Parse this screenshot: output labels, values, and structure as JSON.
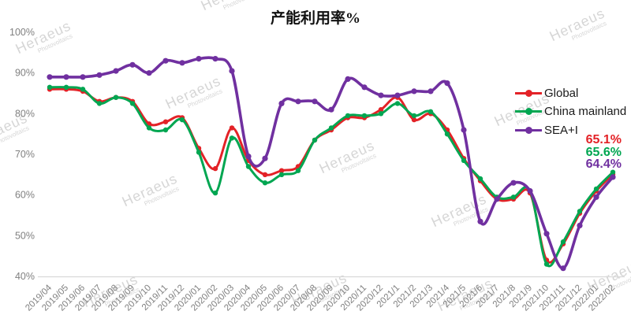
{
  "title": "产能利用率%",
  "watermark": {
    "line1": "Heraeus",
    "line2": "Photovoltaics"
  },
  "colors": {
    "background": "#ffffff",
    "title_text": "#111111",
    "axis_text": "#808080",
    "axis_line": "#d9d9d9",
    "legend_text": "#1a1a1a",
    "watermark": "#cccccc",
    "global_red": "#e32227",
    "china_green": "#00a651",
    "sea_purple": "#7030a0"
  },
  "legend": {
    "items": [
      {
        "label": "Global",
        "value_label": "65.1%",
        "color": "#e32227"
      },
      {
        "label": "China mainland",
        "value_label": "65.6%",
        "color": "#00a651"
      },
      {
        "label": "SEA+I",
        "value_label": "64.4%",
        "color": "#7030a0"
      }
    ]
  },
  "chart_data": {
    "type": "line",
    "title": "产能利用率%",
    "categories": [
      "2019/04",
      "2019/05",
      "2019/06",
      "2019/07",
      "2019/08",
      "2019/09",
      "2019/10",
      "2019/11",
      "2019/12",
      "2020/01",
      "2020/02",
      "2020/03",
      "2020/04",
      "2020/05",
      "2020/06",
      "2020/07",
      "2020/08",
      "2020/09",
      "2020/10",
      "2020/11",
      "2020/12",
      "2021/1",
      "2021/2",
      "2021/3",
      "2021/4",
      "2021/5",
      "2021/6",
      "2021/7",
      "2021/8",
      "2021/9",
      "2021/10",
      "2021/11",
      "2021/12",
      "2022/01",
      "2022/02"
    ],
    "series": [
      {
        "name": "Global",
        "color": "#e32227",
        "values": [
          86,
          86,
          85.5,
          83,
          84,
          83,
          77.5,
          78,
          79,
          71.5,
          66.5,
          76.5,
          68.5,
          65,
          66,
          67,
          73.5,
          76,
          79,
          79,
          81,
          84,
          78.5,
          80,
          76,
          69,
          63.5,
          59,
          59,
          60.5,
          44,
          48,
          55.5,
          61,
          65.1
        ]
      },
      {
        "name": "China mainland",
        "color": "#00a651",
        "values": [
          86.5,
          86.5,
          86,
          82.5,
          84,
          82.5,
          76.5,
          76,
          78.5,
          70.5,
          60.5,
          74,
          67,
          63,
          65,
          66,
          73.5,
          76.5,
          79.5,
          79.5,
          80,
          82.5,
          79.5,
          80.5,
          75,
          68.5,
          64,
          59.5,
          59.5,
          61,
          43,
          48.5,
          56,
          61.5,
          65.6
        ]
      },
      {
        "name": "SEA+I",
        "color": "#7030a0",
        "values": [
          89,
          89,
          89,
          89.5,
          90.5,
          92,
          90,
          93,
          92.5,
          93.5,
          93.5,
          90.5,
          69.5,
          69,
          82.5,
          83,
          83,
          81,
          88.5,
          86.5,
          84.5,
          84.5,
          85.5,
          85.5,
          87.5,
          76,
          53.5,
          59,
          63,
          61,
          50.5,
          42,
          52.5,
          59.5,
          64.4
        ]
      }
    ],
    "ylim": [
      40,
      100
    ],
    "y_ticks": [
      "100%",
      "90%",
      "80%",
      "70%",
      "60%",
      "50%",
      "40%"
    ],
    "grid": false,
    "markers": true,
    "line_smoothing": true,
    "legend_position": "right",
    "x_tick_rotation": -45
  }
}
